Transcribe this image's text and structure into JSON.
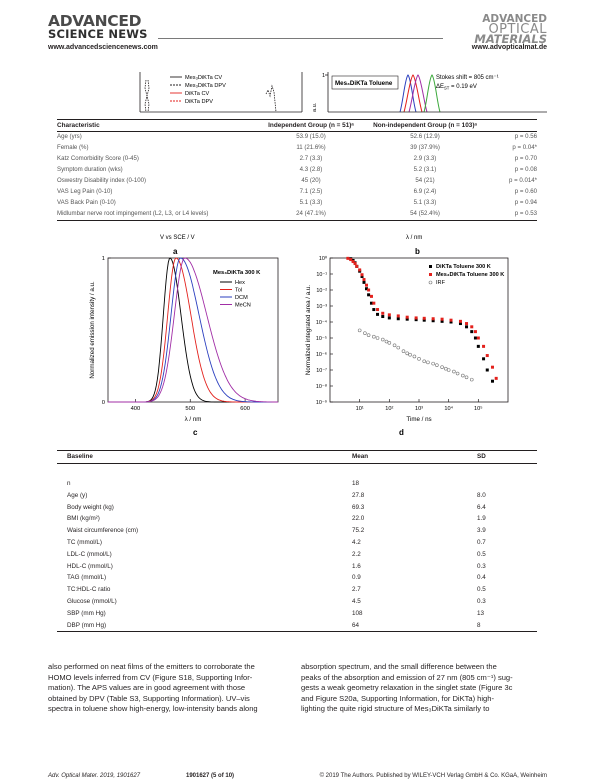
{
  "header": {
    "logo_left_line1": "ADVANCED",
    "logo_left_line2": "SCIENCE NEWS",
    "logo_right_line1": "ADVANCED",
    "logo_right_line2": "OPTICAL",
    "logo_right_line3": "MATERIALS",
    "url_left": "www.advancedsciencenews.com",
    "url_right": "www.advopticalmat.de"
  },
  "top_figure": {
    "legend": [
      "Mes₃DiKTa CV",
      "Mes₃DiKTa DPV",
      "DiKTa CV",
      "DiKTa DPV"
    ],
    "y_tick": "1",
    "ylabel": "a.u.",
    "legend_right": "Mes₃DiKTa Toluene",
    "stokes_line1": "Stokes shift = 805 cm⁻¹",
    "stokes_line2": "ΔE",
    "stokes_sub": "ST",
    "stokes_val": " = 0.19 eV"
  },
  "table1": {
    "headers": [
      "Characteristic",
      "Independent Group (n = 51)ᵃ",
      "Non-independent Group (n = 103)ᵃ",
      ""
    ],
    "rows": [
      [
        "Age (yrs)",
        "53.9 (15.0)",
        "52.6 (12.9)",
        "p = 0.56"
      ],
      [
        "Female (%)",
        "11 (21.6%)",
        "39 (37.9%)",
        "p = 0.04*"
      ],
      [
        "Katz Comorbidity Score (0-45)",
        "2.7 (3.3)",
        "2.9 (3.3)",
        "p = 0.70"
      ],
      [
        "Symptom duration (wks)",
        "4.3 (2.8)",
        "5.2 (3.1)",
        "p = 0.08"
      ],
      [
        "Oswestry Disability index (0-100)",
        "45 (20)",
        "54 (21)",
        "p = 0.014*"
      ],
      [
        "VAS Leg Pain (0-10)",
        "7.1 (2.5)",
        "6.9 (2.4)",
        "p = 0.60"
      ],
      [
        "VAS Back Pain (0-10)",
        "5.1 (3.3)",
        "5.1 (3.3)",
        "p = 0.94"
      ],
      [
        "Midlumbar nerve root impingement (L2, L3, or L4 levels)",
        "24 (47.1%)",
        "54 (52.4%)",
        "p = 0.53"
      ]
    ]
  },
  "figure": {
    "top_cut_left": "V vs SCE / V",
    "top_cut_right": "λ / nm",
    "label_a": "a",
    "label_b": "b",
    "label_c": "c",
    "label_d": "d",
    "c_legend_title": "Mes₃DiKTa 300 K",
    "d_legend": [
      "DiKTa Toluene 300 K",
      "Mes₃DiKTa Toluene 300 K",
      "IRF"
    ]
  },
  "chart_data": [
    {
      "type": "line",
      "title": "Mes₃DiKTa 300 K",
      "xlabel": "λ / nm",
      "ylabel": "Normalized emission intensity / a.u.",
      "xlim": [
        350,
        660
      ],
      "ylim": [
        0,
        1
      ],
      "x_ticks": [
        "400",
        "500",
        "600"
      ],
      "y_ticks": [
        "0",
        "1"
      ],
      "series": [
        {
          "name": "Hex",
          "color": "#000000",
          "peak": 463,
          "width_left": 12,
          "width_right": 20
        },
        {
          "name": "Tol",
          "color": "#e3211c",
          "peak": 474,
          "width_left": 15,
          "width_right": 27
        },
        {
          "name": "DCM",
          "color": "#2b3fbf",
          "peak": 482,
          "width_left": 17,
          "width_right": 34
        },
        {
          "name": "MeCN",
          "color": "#a12ea6",
          "peak": 490,
          "width_left": 19,
          "width_right": 40
        }
      ]
    },
    {
      "type": "scatter",
      "xlabel": "Time / ns",
      "ylabel": "Normalized integrated area / a.u.",
      "x_scale": "log",
      "y_scale": "log",
      "xlim": [
        1,
        1000000
      ],
      "ylim": [
        1e-09,
        1
      ],
      "x_ticks": [
        "10¹",
        "10²",
        "10³",
        "10⁴",
        "10⁵"
      ],
      "y_ticks": [
        "10⁰",
        "10⁻¹",
        "10⁻²",
        "10⁻³",
        "10⁻⁴",
        "10⁻⁵",
        "10⁻⁶",
        "10⁻⁷",
        "10⁻⁸",
        "10⁻⁹"
      ],
      "series": [
        {
          "name": "DiKTa Toluene 300 K",
          "color": "#000000",
          "x": [
            5,
            6,
            7,
            8,
            10,
            12,
            14,
            17,
            20,
            25,
            30,
            40,
            60,
            100,
            200,
            400,
            800,
            1500,
            3000,
            6000,
            12000,
            25000,
            40000,
            60000,
            80000,
            100000,
            150000,
            200000,
            300000
          ],
          "y": [
            0.9,
            0.7,
            0.5,
            0.3,
            0.15,
            0.07,
            0.03,
            0.012,
            0.005,
            0.0015,
            0.0006,
            0.0003,
            0.00022,
            0.00018,
            0.00016,
            0.00015,
            0.00014,
            0.00013,
            0.00012,
            0.00011,
            0.0001,
            8e-05,
            5e-05,
            2.5e-05,
            1e-05,
            3e-06,
            5e-07,
            1e-07,
            2e-08
          ]
        },
        {
          "name": "Mes₃DiKTa Toluene 300 K",
          "color": "#e3211c",
          "x": [
            4,
            5,
            6,
            7,
            8,
            10,
            12,
            14,
            17,
            20,
            25,
            30,
            40,
            60,
            100,
            200,
            400,
            800,
            1500,
            3000,
            6000,
            12000,
            25000,
            40000,
            60000,
            80000,
            100000,
            150000,
            200000,
            300000,
            400000
          ],
          "y": [
            0.95,
            0.8,
            0.6,
            0.45,
            0.3,
            0.18,
            0.09,
            0.045,
            0.02,
            0.01,
            0.004,
            0.0015,
            0.0006,
            0.00035,
            0.00028,
            0.00024,
            0.0002,
            0.00018,
            0.00017,
            0.00016,
            0.00015,
            0.00013,
            0.00011,
            8e-05,
            5e-05,
            2.5e-05,
            1e-05,
            3e-06,
            8e-07,
            1.5e-07,
            3e-08
          ]
        },
        {
          "name": "IRF",
          "color": "#777777",
          "x": [
            10,
            15,
            20,
            30,
            40,
            60,
            80,
            100,
            150,
            200,
            300,
            400,
            500,
            700,
            1000,
            1500,
            2000,
            3000,
            4000,
            6000,
            8000,
            10000,
            15000,
            20000,
            30000,
            40000,
            60000
          ],
          "y": [
            3e-05,
            2e-05,
            1.5e-05,
            1.2e-05,
            1e-05,
            8e-06,
            6e-06,
            5e-06,
            3.5e-06,
            2.5e-06,
            1.5e-06,
            1.1e-06,
            9e-07,
            7e-07,
            5e-07,
            3.5e-07,
            3e-07,
            2.5e-07,
            2e-07,
            1.5e-07,
            1.2e-07,
            1e-07,
            8e-08,
            6e-08,
            4.5e-08,
            3.5e-08,
            2.5e-08
          ]
        }
      ]
    }
  ],
  "table2": {
    "headers": [
      "Baseline",
      "Mean",
      "SD"
    ],
    "rows": [
      [
        "n",
        "18",
        ""
      ],
      [
        "Age (y)",
        "27.8",
        "8.0"
      ],
      [
        "Body weight (kg)",
        "69.3",
        "6.4"
      ],
      [
        "BMI (kg/m²)",
        "22.0",
        "1.9"
      ],
      [
        "Waist circumference (cm)",
        "75.2",
        "3.9"
      ],
      [
        "TC (mmol/L)",
        "4.2",
        "0.7"
      ],
      [
        "LDL-C (mmol/L)",
        "2.2",
        "0.5"
      ],
      [
        "HDL-C (mmol/L)",
        "1.6",
        "0.3"
      ],
      [
        "TAG (mmol/L)",
        "0.9",
        "0.4"
      ],
      [
        "TC:HDL-C ratio",
        "2.7",
        "0.5"
      ],
      [
        "Glucose (mmol/L)",
        "4.5",
        "0.3"
      ],
      [
        "SBP (mm Hg)",
        "108",
        "13"
      ],
      [
        "DBP (mm Hg)",
        "64",
        "8"
      ]
    ]
  },
  "body_text": {
    "left": [
      "also performed on neat films of the emitters to corroborate the",
      "HOMO levels inferred from CV (Figure S18, Supporting Infor-",
      "mation). The APS values are in good agreement with those",
      "obtained by DPV (Table S3, Supporting Information). UV–vis",
      "spectra in toluene show high-energy, low-intensity bands along"
    ],
    "right": [
      "absorption spectrum, and the small difference between the",
      "peaks of the absorption and emission of 27 nm (805 cm⁻¹) sug-",
      "gests a weak geometry relaxation in the singlet state (Figure 3c",
      "and Figure S20a, Supporting Information, for DiKTa) high-",
      "lighting the quite rigid structure of Mes₃DiKTa similarly to"
    ]
  },
  "footer": {
    "journal": "Adv. Optical Mater. 2019, 1901627",
    "page": "1901627  (5 of 10)",
    "copyright": "© 2019 The Authors. Published by WILEY-VCH Verlag GmbH & Co. KGaA, Weinheim"
  }
}
